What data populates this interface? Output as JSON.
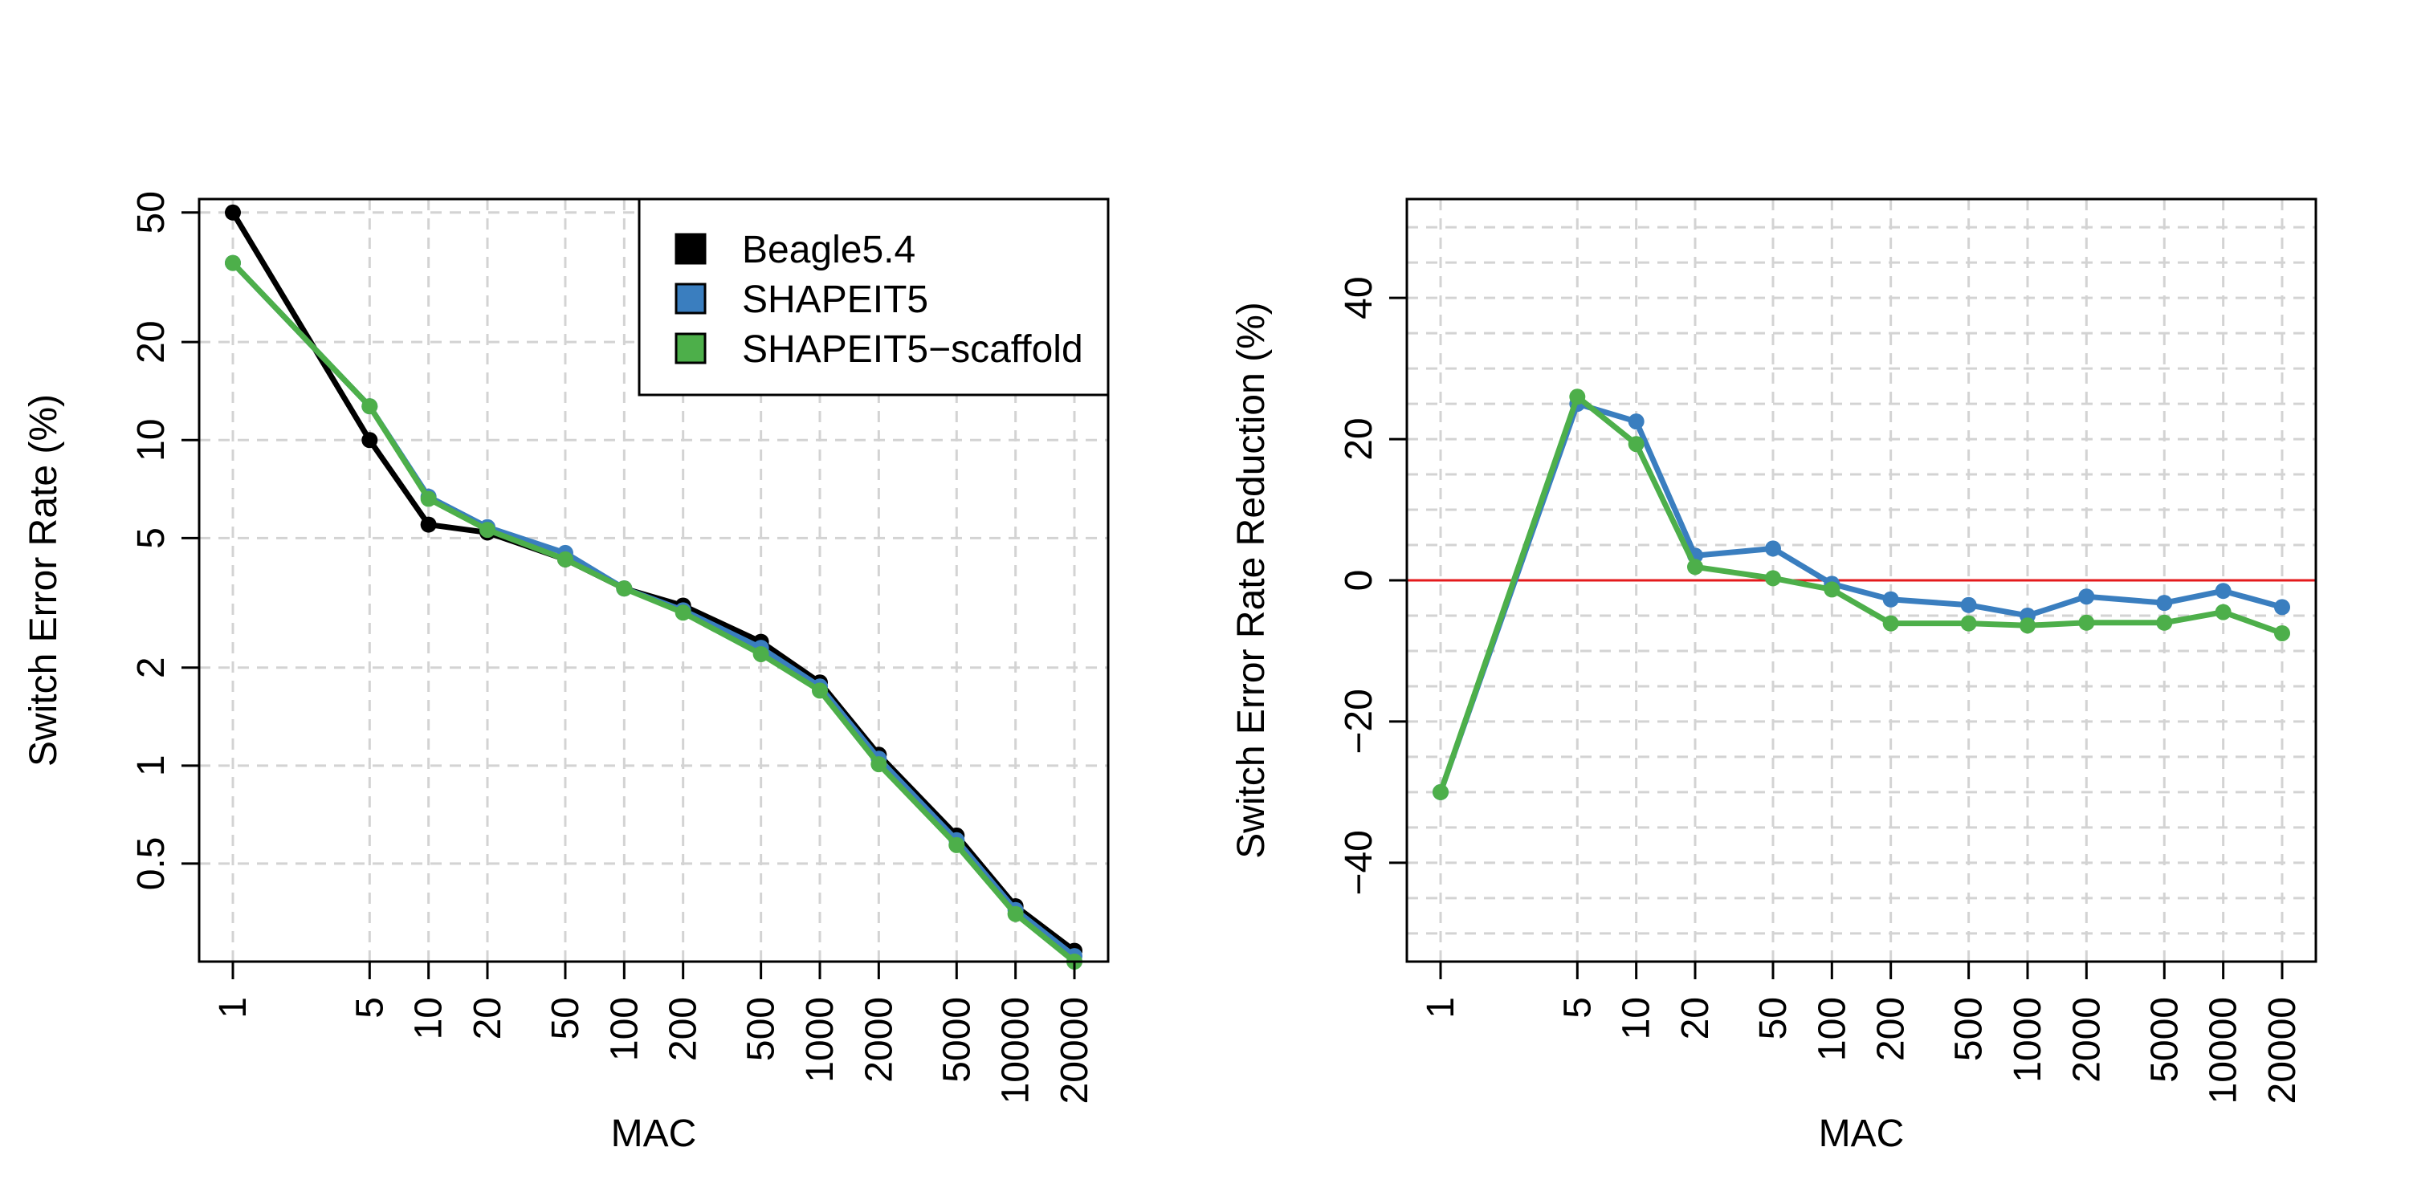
{
  "colors": {
    "beagle": "#000000",
    "shapeit5": "#3a7ebf",
    "scaffold": "#4daf4a",
    "reference_line": "#e41a1c"
  },
  "chart_data": [
    {
      "type": "line",
      "xlabel": "MAC",
      "ylabel": "Switch Error Rate (%)",
      "x_scale": "log",
      "y_scale": "log",
      "xlim": [
        1,
        20000
      ],
      "ylim": [
        0.25,
        55
      ],
      "x_ticks": [
        "1",
        "5",
        "10",
        "20",
        "50",
        "100",
        "200",
        "500",
        "1000",
        "2000",
        "5000",
        "10000",
        "20000"
      ],
      "y_ticks": [
        "0.5",
        "1",
        "2",
        "5",
        "10",
        "20",
        "50"
      ],
      "grid": true,
      "legend": "top-right",
      "x": [
        1,
        5,
        10,
        20,
        50,
        100,
        200,
        500,
        1000,
        2000,
        5000,
        10000,
        20000
      ],
      "series": [
        {
          "name": "Beagle5.4",
          "color": "#000000",
          "values": [
            50,
            10,
            5.5,
            5.2,
            4.3,
            3.5,
            3.1,
            2.4,
            1.8,
            1.08,
            0.61,
            0.37,
            0.27
          ]
        },
        {
          "name": "SHAPEIT5",
          "color": "#3a7ebf",
          "values": [
            35,
            12.7,
            6.7,
            5.4,
            4.5,
            3.5,
            3.0,
            2.3,
            1.75,
            1.05,
            0.59,
            0.36,
            0.26
          ]
        },
        {
          "name": "SHAPEIT5−scaffold",
          "color": "#4daf4a",
          "values": [
            35,
            12.7,
            6.6,
            5.3,
            4.3,
            3.5,
            2.95,
            2.2,
            1.7,
            1.01,
            0.57,
            0.35,
            0.25
          ]
        }
      ]
    },
    {
      "type": "line",
      "xlabel": "MAC",
      "ylabel": "Switch Error Rate Reduction (%)",
      "x_scale": "log",
      "y_scale": "linear",
      "xlim": [
        1,
        20000
      ],
      "ylim": [
        -54,
        54
      ],
      "x_ticks": [
        "1",
        "5",
        "10",
        "20",
        "50",
        "100",
        "200",
        "500",
        "1000",
        "2000",
        "5000",
        "10000",
        "20000"
      ],
      "y_ticks": [
        "-40",
        "-20",
        "0",
        "20",
        "40"
      ],
      "grid": true,
      "reference_line": 0,
      "x": [
        1,
        5,
        10,
        20,
        50,
        100,
        200,
        500,
        1000,
        2000,
        5000,
        10000,
        20000
      ],
      "series": [
        {
          "color": "#3a7ebf",
          "values": [
            -30,
            25,
            22.5,
            3.5,
            4.5,
            -0.5,
            -2.7,
            -3.5,
            -5,
            -2.3,
            -3.2,
            -1.5,
            -3.8
          ]
        },
        {
          "color": "#4daf4a",
          "values": [
            -30,
            26,
            19.3,
            1.9,
            0.3,
            -1.3,
            -6.1,
            -6.1,
            -6.4,
            -6,
            -6,
            -4.5,
            -7.5
          ]
        }
      ]
    }
  ]
}
